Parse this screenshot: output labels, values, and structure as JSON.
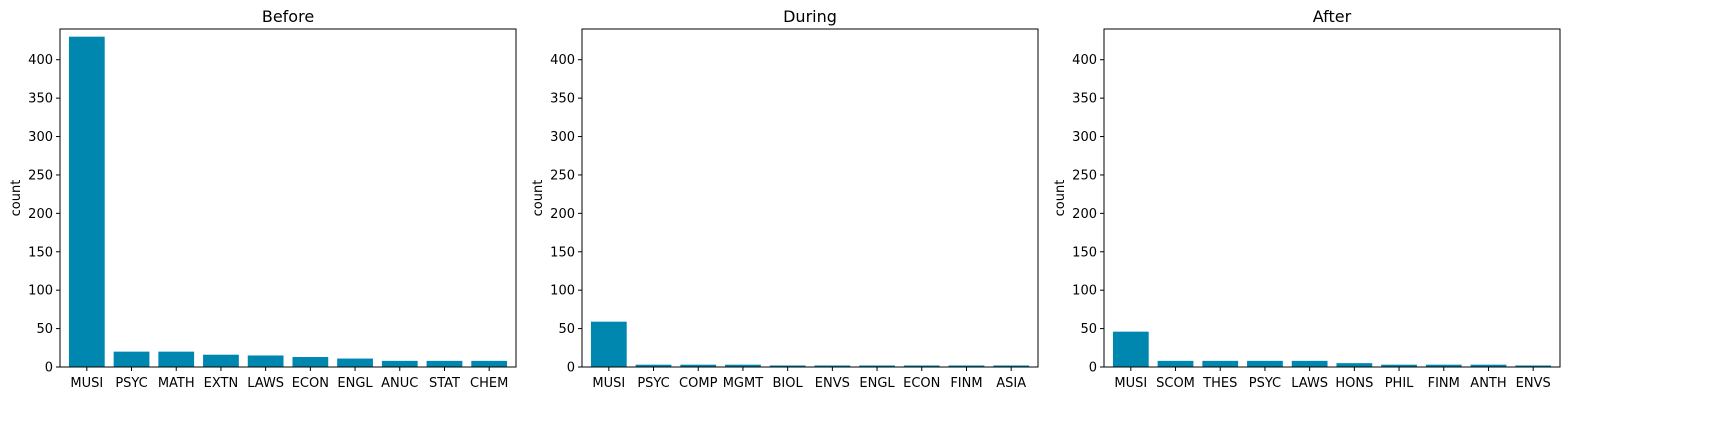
{
  "chart_data": [
    {
      "type": "bar",
      "title": "Before",
      "xlabel": "",
      "ylabel": "count",
      "ylim": [
        0,
        440
      ],
      "yticks": [
        0,
        50,
        100,
        150,
        200,
        250,
        300,
        350,
        400
      ],
      "categories": [
        "MUSI",
        "PSYC",
        "MATH",
        "EXTN",
        "LAWS",
        "ECON",
        "ENGL",
        "ANUC",
        "STAT",
        "CHEM"
      ],
      "values": [
        430,
        20,
        20,
        16,
        15,
        13,
        11,
        8,
        8,
        8
      ],
      "color": "#0087b0"
    },
    {
      "type": "bar",
      "title": "During",
      "xlabel": "",
      "ylabel": "count",
      "ylim": [
        0,
        440
      ],
      "yticks": [
        0,
        50,
        100,
        150,
        200,
        250,
        300,
        350,
        400
      ],
      "categories": [
        "MUSI",
        "PSYC",
        "COMP",
        "MGMT",
        "BIOL",
        "ENVS",
        "ENGL",
        "ECON",
        "FINM",
        "ASIA"
      ],
      "values": [
        59,
        3,
        3,
        3,
        2,
        2,
        2,
        2,
        2,
        2
      ],
      "color": "#0087b0"
    },
    {
      "type": "bar",
      "title": "After",
      "xlabel": "",
      "ylabel": "count",
      "ylim": [
        0,
        440
      ],
      "yticks": [
        0,
        50,
        100,
        150,
        200,
        250,
        300,
        350,
        400
      ],
      "categories": [
        "MUSI",
        "SCOM",
        "THES",
        "PSYC",
        "LAWS",
        "HONS",
        "PHIL",
        "FINM",
        "ANTH",
        "ENVS"
      ],
      "values": [
        46,
        8,
        8,
        8,
        8,
        5,
        3,
        3,
        3,
        2
      ],
      "color": "#0087b0"
    }
  ]
}
